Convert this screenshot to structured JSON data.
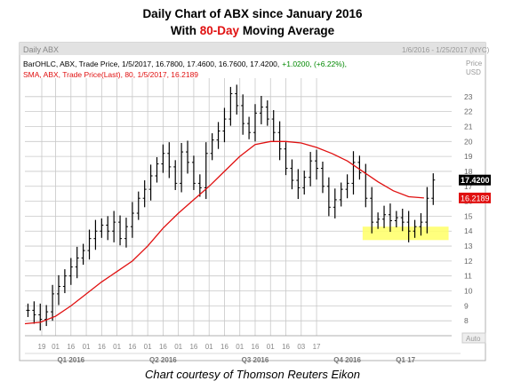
{
  "title_line1": "Daily Chart of ABX since January 2016",
  "title_line2_pre": "With ",
  "title_line2_red": "80-Day",
  "title_line2_post": " Moving Average",
  "caption": "Chart courtesy of Thomson Reuters Eikon",
  "header": {
    "tab_label": "Daily ABX",
    "date_range": "1/6/2016 - 1/25/2017 (NYC)",
    "price_label": "Price",
    "currency": "USD",
    "auto_label": "Auto"
  },
  "legend": {
    "bar_label": "BarOHLC, ABX, Trade Price, 1/5/2017, 16.7800, 17.4600, 16.7600, 17.4200,",
    "bar_change": "+1.0200, (+6.22%),",
    "sma_label": "SMA, ABX, Trade Price(Last),  80,  1/5/2017, 16.2189"
  },
  "colors": {
    "bars": "#000000",
    "sma": "#e01010",
    "last_tag": "#000000",
    "sma_tag": "#e01010",
    "highlight": "#ffff66",
    "change": "#008800"
  },
  "chart_data": {
    "type": "line",
    "title": "Daily Chart of ABX since January 2016",
    "ylabel": "Price USD",
    "ylim": [
      7,
      24
    ],
    "y_ticks": [
      8,
      9,
      10,
      11,
      12,
      13,
      14,
      15,
      16,
      17,
      18,
      19,
      20,
      21,
      22,
      23
    ],
    "x_tick_labels": [
      "19",
      "01",
      "16",
      "01",
      "16",
      "01",
      "16",
      "01",
      "16",
      "01",
      "16",
      "01",
      "16",
      "01",
      "16",
      "01",
      "16",
      "03",
      "17"
    ],
    "x_tick_months": [
      0.55,
      1.0,
      1.5,
      2.0,
      2.5,
      3.0,
      3.5,
      4.0,
      4.5,
      5.0,
      5.5,
      6.0,
      6.5,
      7.0,
      7.5,
      8.0,
      8.5,
      9.0,
      9.5
    ],
    "quarter_labels": [
      {
        "label": "Q1 2016",
        "month": 1.5
      },
      {
        "label": "Q2 2016",
        "month": 4.5
      },
      {
        "label": "Q3 2016",
        "month": 7.5
      },
      {
        "label": "Q4 2016",
        "month": 10.5
      },
      {
        "label": "Q1 17",
        "month": 12.4
      }
    ],
    "series": [
      {
        "name": "BarOHLC, ABX, Trade Price",
        "points": [
          [
            0.1,
            8.7
          ],
          [
            0.3,
            8.4
          ],
          [
            0.5,
            8.1
          ],
          [
            0.7,
            8.6
          ],
          [
            0.9,
            9.8
          ],
          [
            1.1,
            10.3
          ],
          [
            1.3,
            11.0
          ],
          [
            1.5,
            11.6
          ],
          [
            1.7,
            12.2
          ],
          [
            1.9,
            12.7
          ],
          [
            2.1,
            13.5
          ],
          [
            2.3,
            14.0
          ],
          [
            2.5,
            14.4
          ],
          [
            2.7,
            14.0
          ],
          [
            2.9,
            14.6
          ],
          [
            3.1,
            13.5
          ],
          [
            3.3,
            14.3
          ],
          [
            3.5,
            15.2
          ],
          [
            3.7,
            16.2
          ],
          [
            3.9,
            16.8
          ],
          [
            4.1,
            17.7
          ],
          [
            4.3,
            18.5
          ],
          [
            4.5,
            19.2
          ],
          [
            4.7,
            18.3
          ],
          [
            4.9,
            17.2
          ],
          [
            5.1,
            19.3
          ],
          [
            5.3,
            18.6
          ],
          [
            5.5,
            17.2
          ],
          [
            5.7,
            16.9
          ],
          [
            5.9,
            19.2
          ],
          [
            6.1,
            20.1
          ],
          [
            6.3,
            20.7
          ],
          [
            6.5,
            21.5
          ],
          [
            6.7,
            23.2
          ],
          [
            6.9,
            22.4
          ],
          [
            7.1,
            21.2
          ],
          [
            7.3,
            20.6
          ],
          [
            7.5,
            21.9
          ],
          [
            7.7,
            22.3
          ],
          [
            7.9,
            21.5
          ],
          [
            8.1,
            20.6
          ],
          [
            8.3,
            19.5
          ],
          [
            8.5,
            18.2
          ],
          [
            8.7,
            17.4
          ],
          [
            8.9,
            16.9
          ],
          [
            9.1,
            17.6
          ],
          [
            9.3,
            18.7
          ],
          [
            9.5,
            18.2
          ],
          [
            9.7,
            17.0
          ],
          [
            9.9,
            15.6
          ],
          [
            10.1,
            16.1
          ],
          [
            10.3,
            16.8
          ],
          [
            10.5,
            17.2
          ],
          [
            10.7,
            18.6
          ],
          [
            10.9,
            17.9
          ],
          [
            11.1,
            16.2
          ],
          [
            11.3,
            14.6
          ],
          [
            11.5,
            14.8
          ],
          [
            11.7,
            15.1
          ],
          [
            11.9,
            14.7
          ],
          [
            12.1,
            14.9
          ],
          [
            12.3,
            14.6
          ],
          [
            12.5,
            14.0
          ],
          [
            12.7,
            14.3
          ],
          [
            12.9,
            14.6
          ],
          [
            13.1,
            16.2
          ],
          [
            13.3,
            17.42
          ]
        ]
      },
      {
        "name": "SMA, ABX, Trade Price(Last), 80",
        "points": [
          [
            0.0,
            7.8
          ],
          [
            0.5,
            7.9
          ],
          [
            1.0,
            8.3
          ],
          [
            1.5,
            9.0
          ],
          [
            2.0,
            9.8
          ],
          [
            2.5,
            10.6
          ],
          [
            3.0,
            11.3
          ],
          [
            3.5,
            12.0
          ],
          [
            4.0,
            13.0
          ],
          [
            4.5,
            14.2
          ],
          [
            5.0,
            15.2
          ],
          [
            5.5,
            16.1
          ],
          [
            6.0,
            17.0
          ],
          [
            6.5,
            18.0
          ],
          [
            7.0,
            19.0
          ],
          [
            7.5,
            19.8
          ],
          [
            8.0,
            20.0
          ],
          [
            8.5,
            20.0
          ],
          [
            9.0,
            19.9
          ],
          [
            9.5,
            19.6
          ],
          [
            10.0,
            19.2
          ],
          [
            10.5,
            18.7
          ],
          [
            11.0,
            18.0
          ],
          [
            11.5,
            17.3
          ],
          [
            12.0,
            16.7
          ],
          [
            12.5,
            16.3
          ],
          [
            13.0,
            16.22
          ]
        ]
      }
    ],
    "highlight_band": {
      "x_start": 11.0,
      "x_end": 13.8,
      "y_low": 13.4,
      "y_high": 14.3
    },
    "last_value": "17.4200",
    "sma_value": "16.2189",
    "grid": true,
    "legend_position": "top-left"
  }
}
